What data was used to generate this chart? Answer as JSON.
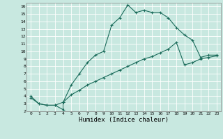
{
  "xlabel": "Humidex (Indice chaleur)",
  "bg_color": "#c8e8e0",
  "grid_color": "#ffffff",
  "line_color": "#1a6b5a",
  "xlim": [
    -0.5,
    23.5
  ],
  "ylim": [
    2,
    16.5
  ],
  "xticks": [
    0,
    1,
    2,
    3,
    4,
    5,
    6,
    7,
    8,
    9,
    10,
    11,
    12,
    13,
    14,
    15,
    16,
    17,
    18,
    19,
    20,
    21,
    22,
    23
  ],
  "yticks": [
    2,
    3,
    4,
    5,
    6,
    7,
    8,
    9,
    10,
    11,
    12,
    13,
    14,
    15,
    16
  ],
  "series1_x": [
    0,
    1,
    2,
    3,
    4,
    4,
    5,
    6,
    7,
    8,
    9,
    10,
    11,
    12,
    13,
    14,
    15,
    16,
    17,
    18,
    19,
    20,
    21,
    22,
    23
  ],
  "series1_y": [
    4,
    3,
    2.8,
    2.8,
    2.2,
    3.2,
    5.5,
    7.0,
    8.5,
    9.5,
    10,
    13.5,
    14.5,
    16.2,
    15.2,
    15.5,
    15.2,
    15.2,
    14.5,
    13.2,
    12.2,
    11.5,
    9.2,
    9.5,
    9.5
  ],
  "series2_x": [
    0,
    1,
    2,
    3,
    4,
    5,
    6,
    7,
    8,
    9,
    10,
    11,
    12,
    13,
    14,
    15,
    16,
    17,
    18,
    19,
    20,
    21,
    22,
    23
  ],
  "series2_y": [
    3.8,
    3.0,
    2.8,
    2.8,
    3.2,
    4.2,
    4.8,
    5.5,
    6.0,
    6.5,
    7.0,
    7.5,
    8.0,
    8.5,
    9.0,
    9.3,
    9.8,
    10.3,
    11.2,
    8.2,
    8.5,
    9.0,
    9.2,
    9.4
  ]
}
